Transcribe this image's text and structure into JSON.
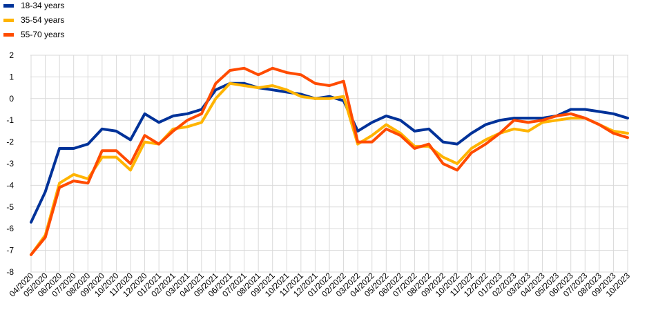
{
  "chart_data": {
    "type": "line",
    "title": "",
    "xlabel": "",
    "ylabel": "",
    "ylim": [
      -8,
      2
    ],
    "yticks": [
      -8,
      -7,
      -6,
      -5,
      -4,
      -3,
      -2,
      -1,
      0,
      1,
      2
    ],
    "grid": true,
    "legend_position": "top-left",
    "x": [
      "04/2020",
      "05/2020",
      "06/2020",
      "07/2020",
      "08/2020",
      "09/2020",
      "10/2020",
      "11/2020",
      "12/2020",
      "01/2021",
      "02/2021",
      "03/2021",
      "04/2021",
      "05/2021",
      "06/2021",
      "07/2021",
      "08/2021",
      "09/2021",
      "10/2021",
      "11/2021",
      "12/2021",
      "01/2022",
      "02/2022",
      "03/2022",
      "04/2022",
      "05/2022",
      "06/2022",
      "07/2022",
      "08/2022",
      "09/2022",
      "10/2022",
      "11/2022",
      "12/2022",
      "01/2023",
      "02/2023",
      "03/2023",
      "04/2023",
      "05/2023",
      "06/2023",
      "07/2023",
      "08/2023",
      "09/2023",
      "10/2023"
    ],
    "series": [
      {
        "name": "18-34 years",
        "color": "#003299",
        "values": [
          -5.7,
          -4.3,
          -2.3,
          -2.3,
          -2.1,
          -1.4,
          -1.5,
          -1.9,
          -0.7,
          -1.1,
          -0.8,
          -0.7,
          -0.5,
          0.4,
          0.7,
          0.7,
          0.5,
          0.4,
          0.3,
          0.2,
          0.0,
          0.1,
          -0.1,
          -1.5,
          -1.1,
          -0.8,
          -1.0,
          -1.5,
          -1.4,
          -2.0,
          -2.1,
          -1.6,
          -1.2,
          -1.0,
          -0.9,
          -0.9,
          -0.9,
          -0.8,
          -0.5,
          -0.5,
          -0.6,
          -0.7,
          -0.9
        ]
      },
      {
        "name": "35-54 years",
        "color": "#FFB400",
        "values": [
          -7.2,
          -6.3,
          -3.9,
          -3.5,
          -3.7,
          -2.7,
          -2.7,
          -3.3,
          -2.0,
          -2.1,
          -1.4,
          -1.3,
          -1.1,
          0.0,
          0.7,
          0.6,
          0.5,
          0.6,
          0.4,
          0.1,
          0.0,
          0.0,
          0.1,
          -2.1,
          -1.7,
          -1.2,
          -1.6,
          -2.2,
          -2.2,
          -2.7,
          -3.0,
          -2.3,
          -1.9,
          -1.6,
          -1.4,
          -1.5,
          -1.1,
          -1.0,
          -0.9,
          -0.9,
          -1.2,
          -1.5,
          -1.6
        ]
      },
      {
        "name": "55-70 years",
        "color": "#FF4B00",
        "values": [
          -7.2,
          -6.4,
          -4.1,
          -3.8,
          -3.9,
          -2.4,
          -2.4,
          -3.0,
          -1.7,
          -2.1,
          -1.5,
          -1.0,
          -0.7,
          0.7,
          1.3,
          1.4,
          1.1,
          1.4,
          1.2,
          1.1,
          0.7,
          0.6,
          0.8,
          -2.0,
          -2.0,
          -1.4,
          -1.7,
          -2.3,
          -2.1,
          -3.0,
          -3.3,
          -2.5,
          -2.1,
          -1.6,
          -1.0,
          -1.1,
          -1.0,
          -0.8,
          -0.7,
          -0.9,
          -1.2,
          -1.6,
          -1.8
        ]
      }
    ]
  }
}
